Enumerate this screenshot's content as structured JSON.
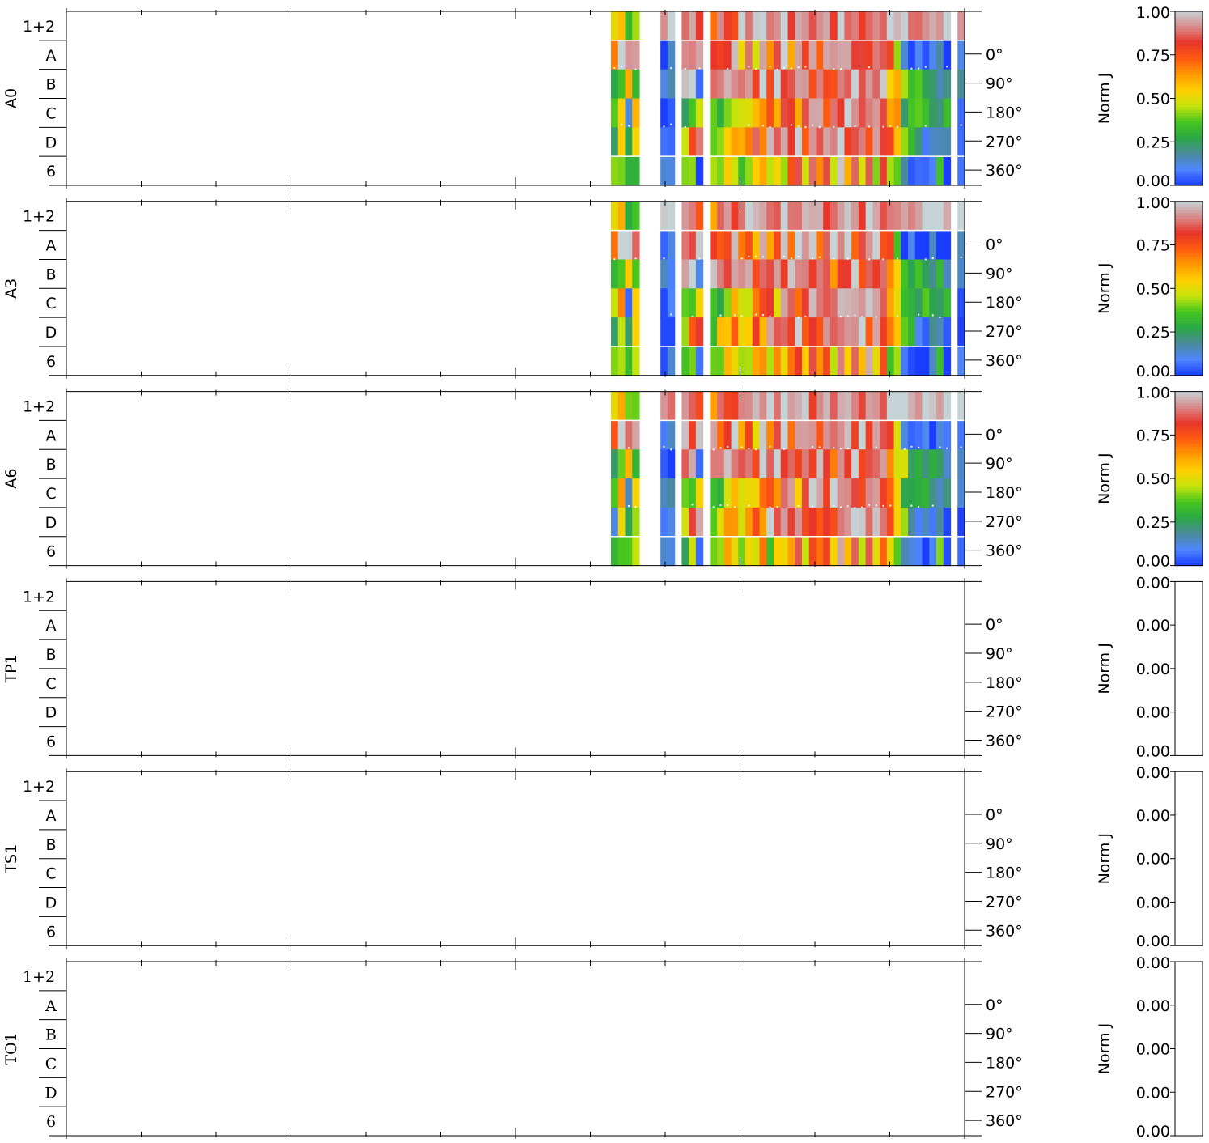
{
  "chart_data": {
    "type": "heatmap",
    "row_labels": [
      "1+2",
      "A",
      "B",
      "C",
      "D",
      "6"
    ],
    "angle_ticks": [
      "0°",
      "90°",
      "180°",
      "270°",
      "360°"
    ],
    "colorbar_label": "Norm J",
    "x_tick_count": 13,
    "panels": [
      {
        "name": "A0",
        "colorbar_ticks": [
          "1.00",
          "0.75",
          "0.50",
          "0.25",
          "0.00"
        ],
        "has_data": true,
        "seed": 11
      },
      {
        "name": "A3",
        "colorbar_ticks": [
          "1.00",
          "0.75",
          "0.50",
          "0.25",
          "0.00"
        ],
        "has_data": true,
        "seed": 23
      },
      {
        "name": "A6",
        "colorbar_ticks": [
          "1.00",
          "0.75",
          "0.50",
          "0.25",
          "0.00"
        ],
        "has_data": true,
        "seed": 37
      },
      {
        "name": "TP1",
        "colorbar_ticks": [
          "0.00",
          "0.00",
          "0.00",
          "0.00",
          "0.00"
        ],
        "has_data": false
      },
      {
        "name": "TS1",
        "colorbar_ticks": [
          "0.00",
          "0.00",
          "0.00",
          "0.00",
          "0.00"
        ],
        "has_data": false
      },
      {
        "name": "TO1",
        "colorbar_ticks": [
          "0.00",
          "0.00",
          "0.00",
          "0.00",
          "0.00"
        ],
        "has_data": false,
        "serif": true
      }
    ],
    "colormap": [
      "#1a3dff",
      "#4f86ff",
      "#4a8a9a",
      "#2aa845",
      "#46c61f",
      "#c6e40c",
      "#ffd000",
      "#ff9a00",
      "#ff5a10",
      "#e8352a",
      "#d98a8a",
      "#c6d3d6"
    ],
    "data_columns": [
      [
        0.55,
        0.72,
        0.3,
        0.45,
        0.2,
        0.35
      ],
      [
        0.65,
        1.0,
        0.42,
        0.6,
        0.5,
        0.44
      ],
      [
        0.35,
        0.95,
        0.6,
        0.1,
        0.28,
        0.3
      ],
      [
        0.4,
        0.95,
        0.38,
        0.55,
        0.48,
        0.38
      ],
      null,
      null,
      null,
      [
        0.95,
        0.06,
        0.1,
        0.06,
        0.09,
        0.05
      ],
      [
        0.95,
        0.1,
        0.08,
        0.12,
        0.08,
        0.07
      ],
      null,
      [
        0.96,
        0.96,
        0.91,
        0.3,
        0.5,
        0.34
      ],
      [
        0.9,
        0.82,
        0.96,
        0.42,
        0.78,
        0.4
      ],
      [
        0.8,
        0.96,
        0.1,
        0.45,
        0.9,
        0.08
      ],
      null,
      [
        0.65,
        0.88,
        0.96,
        0.35,
        0.4,
        0.42
      ],
      [
        0.95,
        0.7,
        0.96,
        0.35,
        0.5,
        0.4
      ],
      [
        0.84,
        0.85,
        0.92,
        0.4,
        0.6,
        0.55
      ],
      [
        0.82,
        0.95,
        0.93,
        0.52,
        0.7,
        0.43
      ],
      [
        0.96,
        0.6,
        0.93,
        0.5,
        0.55,
        0.36
      ],
      [
        0.92,
        0.8,
        0.92,
        0.45,
        0.62,
        0.5
      ],
      [
        0.96,
        0.5,
        0.85,
        0.6,
        0.8,
        0.55
      ],
      [
        0.94,
        0.92,
        0.95,
        0.7,
        0.65,
        0.62
      ],
      [
        0.96,
        0.62,
        0.8,
        0.8,
        0.96,
        0.42
      ],
      [
        0.92,
        0.82,
        0.95,
        0.58,
        0.85,
        0.6
      ],
      [
        0.96,
        0.96,
        0.78,
        0.9,
        0.96,
        0.45
      ],
      [
        0.9,
        0.7,
        0.93,
        0.88,
        0.8,
        0.68
      ],
      [
        0.96,
        0.96,
        0.86,
        0.62,
        0.96,
        0.8
      ],
      [
        0.94,
        0.85,
        0.9,
        0.85,
        0.75,
        0.54
      ],
      [
        0.88,
        0.94,
        0.76,
        0.96,
        0.9,
        0.86
      ],
      [
        0.96,
        0.72,
        0.9,
        0.92,
        0.82,
        0.62
      ],
      [
        0.9,
        0.9,
        0.82,
        0.8,
        0.9,
        0.82
      ],
      [
        0.8,
        0.96,
        0.72,
        0.96,
        0.84,
        0.52
      ],
      [
        0.96,
        0.86,
        0.84,
        0.88,
        0.96,
        0.92
      ],
      [
        0.92,
        0.96,
        0.9,
        0.94,
        0.86,
        0.6
      ],
      [
        0.96,
        0.8,
        0.96,
        0.9,
        0.92,
        0.82
      ],
      [
        0.88,
        0.92,
        0.76,
        0.84,
        0.96,
        0.5
      ],
      [
        0.96,
        0.86,
        0.92,
        0.96,
        0.8,
        0.9
      ],
      [
        0.94,
        0.96,
        0.84,
        0.9,
        0.94,
        0.46
      ],
      [
        0.9,
        0.82,
        0.9,
        0.8,
        0.88,
        0.8
      ],
      [
        0.96,
        0.84,
        0.62,
        0.7,
        0.76,
        0.42
      ],
      [
        0.96,
        0.4,
        0.56,
        0.58,
        0.55,
        0.4
      ],
      [
        0.96,
        0.08,
        0.4,
        0.3,
        0.42,
        0.1
      ],
      [
        0.96,
        0.06,
        0.3,
        0.28,
        0.26,
        0.06
      ],
      [
        0.96,
        0.07,
        0.28,
        0.3,
        0.14,
        0.07
      ],
      [
        0.96,
        0.06,
        0.26,
        0.3,
        0.1,
        0.06
      ],
      [
        0.96,
        0.06,
        0.22,
        0.28,
        0.12,
        0.06
      ],
      [
        0.96,
        0.08,
        0.24,
        0.2,
        0.1,
        0.4
      ],
      [
        0.96,
        0.06,
        0.12,
        0.3,
        0.08,
        0.06
      ],
      null,
      [
        0.96,
        0.12,
        0.1,
        0.1,
        0.08,
        0.06
      ]
    ]
  }
}
